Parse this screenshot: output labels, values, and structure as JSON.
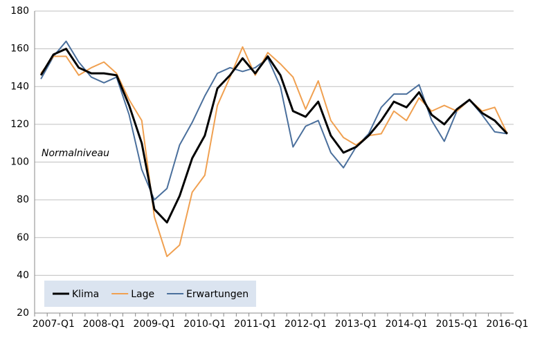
{
  "chart_data": {
    "type": "line",
    "annotation": "Normalniveau",
    "categories": [
      null,
      "2007-Q1",
      null,
      null,
      null,
      "2008-Q1",
      null,
      null,
      null,
      "2009-Q1",
      null,
      null,
      null,
      "2010-Q1",
      null,
      null,
      null,
      "2011-Q1",
      null,
      null,
      null,
      "2012-Q1",
      null,
      null,
      null,
      "2013-Q1",
      null,
      null,
      null,
      "2014-Q1",
      null,
      null,
      null,
      "2015-Q1",
      null,
      null,
      null,
      "2016-Q1"
    ],
    "series": [
      {
        "name": "Klima",
        "color": "#000000",
        "width": 3,
        "values": [
          146,
          157,
          160,
          150,
          147,
          147,
          146,
          130,
          110,
          75,
          68,
          82,
          102,
          114,
          139,
          146,
          155,
          147,
          156,
          146,
          127,
          124,
          132,
          114,
          105,
          108,
          114,
          122,
          132,
          129,
          137,
          125,
          120,
          128,
          133,
          126,
          122,
          115
        ]
      },
      {
        "name": "Lage",
        "color": "#f0a050",
        "width": 2,
        "values": [
          147,
          156,
          156,
          146,
          150,
          153,
          147,
          133,
          122,
          71,
          50,
          56,
          84,
          93,
          130,
          145,
          161,
          146,
          158,
          152,
          145,
          128,
          143,
          122,
          113,
          109,
          114,
          115,
          127,
          122,
          134,
          127,
          130,
          127,
          133,
          127,
          129,
          115
        ]
      },
      {
        "name": "Erwartungen",
        "color": "#4a6f9c",
        "width": 2,
        "values": [
          144,
          156,
          164,
          153,
          145,
          142,
          145,
          125,
          96,
          80,
          86,
          109,
          121,
          135,
          147,
          150,
          148,
          150,
          155,
          140,
          108,
          119,
          122,
          105,
          97,
          108,
          115,
          129,
          136,
          136,
          141,
          122,
          111,
          127,
          133,
          125,
          116,
          115
        ]
      }
    ],
    "ylim": [
      20,
      180
    ],
    "yticks": [
      20,
      40,
      60,
      80,
      100,
      120,
      140,
      160,
      180
    ],
    "grid": true,
    "legend": "lower left"
  }
}
